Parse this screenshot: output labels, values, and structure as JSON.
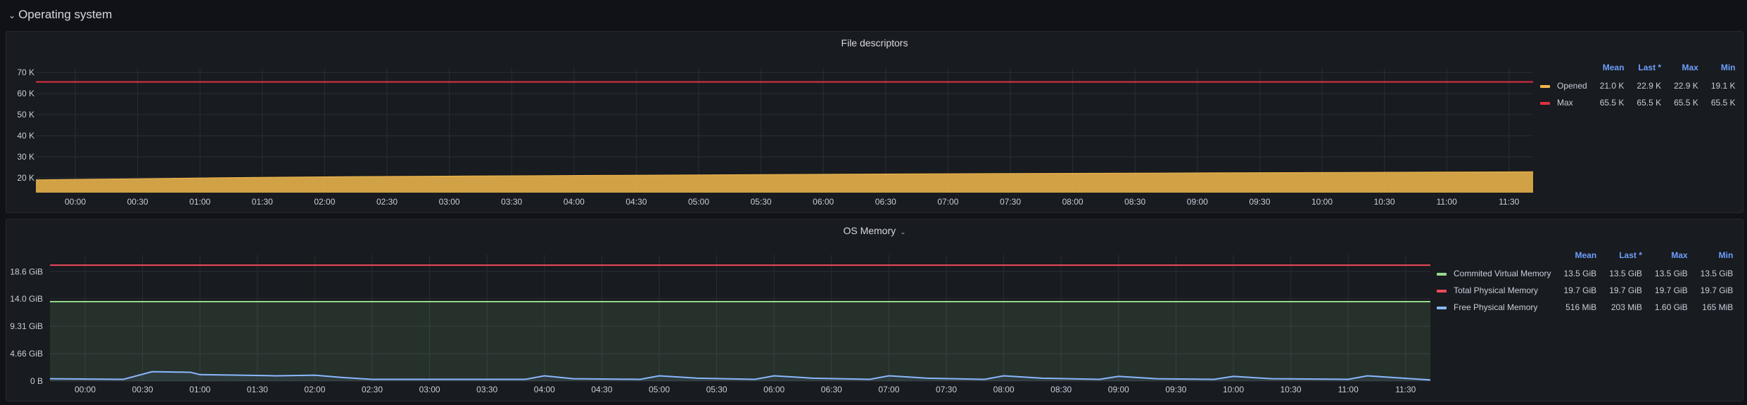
{
  "row": {
    "title": "Operating system"
  },
  "panels": [
    {
      "title": "File descriptors",
      "legend": {
        "columns": [
          "Mean",
          "Last *",
          "Max",
          "Min"
        ],
        "rows": [
          {
            "name": "Opened",
            "color": "#f2b84d",
            "values": [
              "21.0 K",
              "22.9 K",
              "22.9 K",
              "19.1 K"
            ]
          },
          {
            "name": "Max",
            "color": "#e02f44",
            "values": [
              "65.5 K",
              "65.5 K",
              "65.5 K",
              "65.5 K"
            ]
          }
        ]
      }
    },
    {
      "title": "OS Memory",
      "legend": {
        "columns": [
          "Mean",
          "Last *",
          "Max",
          "Min"
        ],
        "rows": [
          {
            "name": "Commited Virtual Memory",
            "color": "#96d98d",
            "values": [
              "13.5 GiB",
              "13.5 GiB",
              "13.5 GiB",
              "13.5 GiB"
            ]
          },
          {
            "name": "Total Physical Memory",
            "color": "#f2495c",
            "values": [
              "19.7 GiB",
              "19.7 GiB",
              "19.7 GiB",
              "19.7 GiB"
            ]
          },
          {
            "name": "Free Physical Memory",
            "color": "#8ab8ff",
            "values": [
              "516 MiB",
              "203 MiB",
              "1.60 GiB",
              "165 MiB"
            ]
          }
        ]
      }
    }
  ],
  "chart_data": [
    {
      "type": "area",
      "title": "File descriptors",
      "x_ticks": [
        "00:00",
        "00:30",
        "01:00",
        "01:30",
        "02:00",
        "02:30",
        "03:00",
        "03:30",
        "04:00",
        "04:30",
        "05:00",
        "05:30",
        "06:00",
        "06:30",
        "07:00",
        "07:30",
        "08:00",
        "08:30",
        "09:00",
        "09:30",
        "10:00",
        "10:30",
        "11:00",
        "11:30"
      ],
      "y_ticks": [
        "20 K",
        "30 K",
        "40 K",
        "50 K",
        "60 K",
        "70 K"
      ],
      "ylim": [
        13000,
        72000
      ],
      "grid": true,
      "series": [
        {
          "name": "Opened",
          "color": "#f2b84d",
          "x": [
            "23:40",
            "00:30",
            "01:10",
            "02:10",
            "03:10",
            "04:10",
            "05:15",
            "06:15",
            "07:10",
            "08:10",
            "09:10",
            "10:10",
            "11:10",
            "11:45"
          ],
          "values": [
            19100,
            19600,
            20100,
            20600,
            20900,
            21200,
            21500,
            21800,
            22000,
            22200,
            22400,
            22600,
            22800,
            22900
          ]
        },
        {
          "name": "Max",
          "color": "#e02f44",
          "x": [
            "23:40",
            "11:45"
          ],
          "values": [
            65500,
            65500
          ]
        }
      ]
    },
    {
      "type": "area",
      "title": "OS Memory",
      "x_ticks": [
        "00:00",
        "00:30",
        "01:00",
        "01:30",
        "02:00",
        "02:30",
        "03:00",
        "03:30",
        "04:00",
        "04:30",
        "05:00",
        "05:30",
        "06:00",
        "06:30",
        "07:00",
        "07:30",
        "08:00",
        "08:30",
        "09:00",
        "09:30",
        "10:00",
        "10:30",
        "11:00",
        "11:30"
      ],
      "y_ticks": [
        "0 B",
        "4.66 GiB",
        "9.31 GiB",
        "14.0 GiB",
        "18.6 GiB"
      ],
      "ylim_gib": [
        0,
        21.5
      ],
      "grid": true,
      "series": [
        {
          "name": "Commited Virtual Memory",
          "color": "#96d98d",
          "x": [
            "23:40",
            "11:45"
          ],
          "values": [
            13.5,
            13.5
          ]
        },
        {
          "name": "Total Physical Memory",
          "color": "#f2495c",
          "x": [
            "23:40",
            "11:45"
          ],
          "values": [
            19.7,
            19.7
          ]
        },
        {
          "name": "Free Physical Memory",
          "color": "#8ab8ff",
          "x": [
            "23:40",
            "00:20",
            "00:35",
            "00:55",
            "01:00",
            "01:40",
            "02:00",
            "02:15",
            "02:30",
            "03:50",
            "04:00",
            "04:15",
            "04:50",
            "05:00",
            "05:20",
            "05:50",
            "06:00",
            "06:20",
            "06:50",
            "07:00",
            "07:20",
            "07:50",
            "08:00",
            "08:20",
            "08:50",
            "09:00",
            "09:20",
            "09:50",
            "10:00",
            "10:20",
            "11:00",
            "11:10",
            "11:45"
          ],
          "values": [
            0.4,
            0.3,
            1.6,
            1.5,
            1.1,
            0.9,
            1.0,
            0.6,
            0.3,
            0.3,
            0.9,
            0.4,
            0.3,
            0.9,
            0.5,
            0.3,
            0.9,
            0.5,
            0.3,
            0.9,
            0.5,
            0.3,
            0.9,
            0.5,
            0.3,
            0.8,
            0.4,
            0.3,
            0.8,
            0.4,
            0.3,
            0.9,
            0.2
          ]
        }
      ]
    }
  ]
}
